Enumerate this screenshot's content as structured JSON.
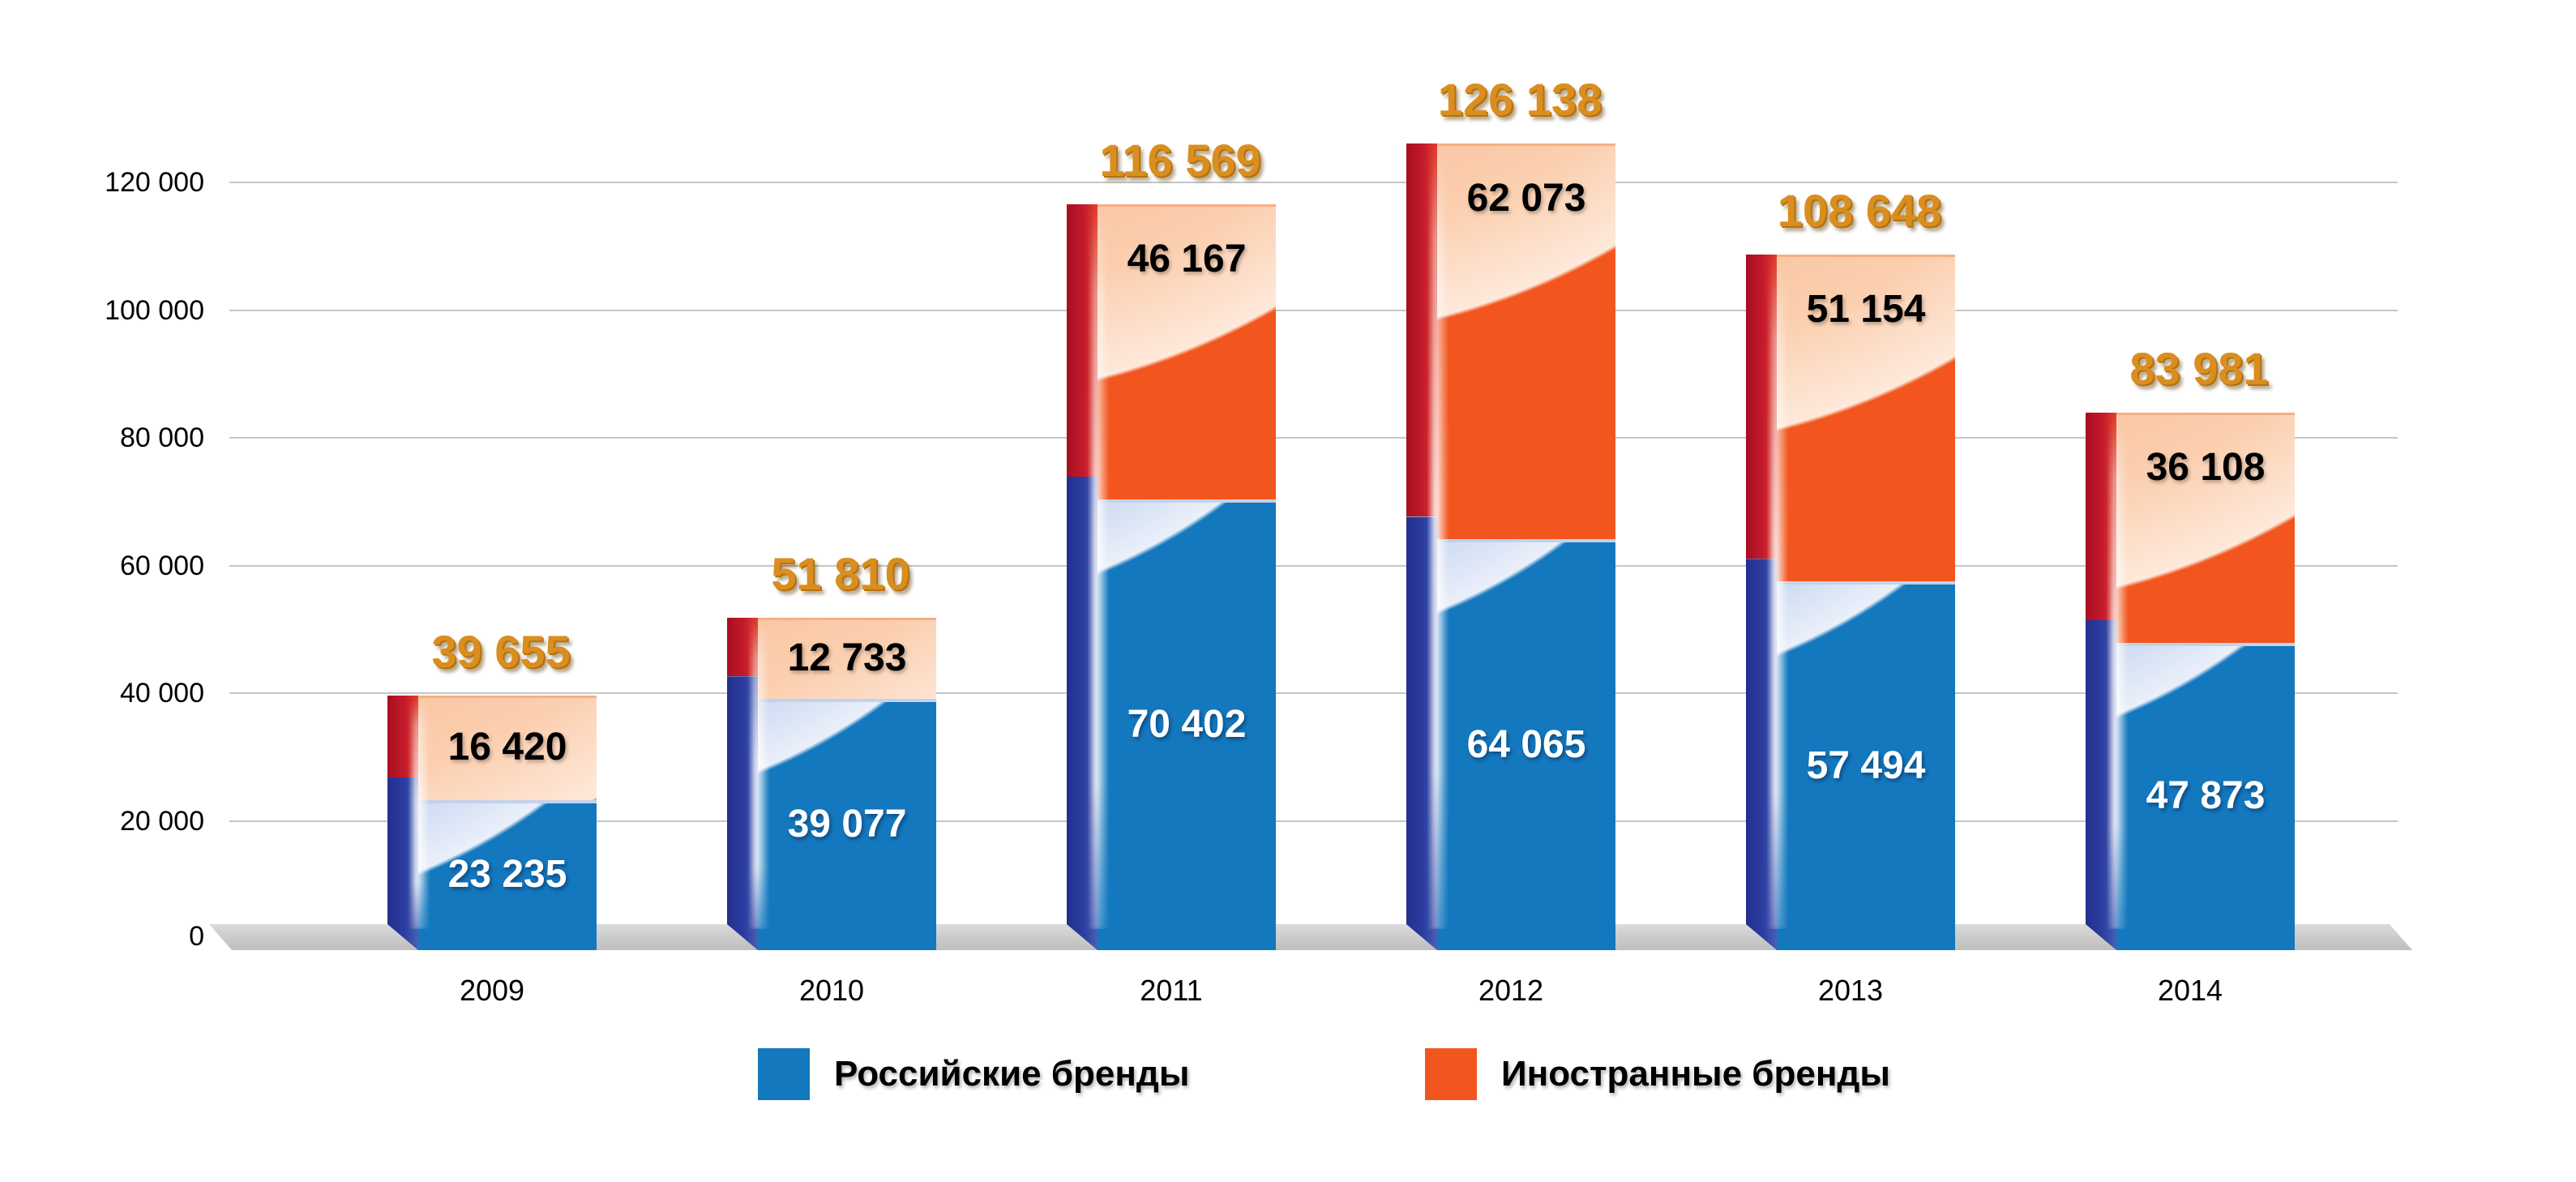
{
  "chart_data": {
    "type": "bar",
    "variant": "stacked-3d-column",
    "title": "",
    "categories": [
      "2009",
      "2010",
      "2011",
      "2012",
      "2013",
      "2014"
    ],
    "series": [
      {
        "name": "Российские бренды",
        "color": "#1478BE",
        "values": [
          23235,
          39077,
          70402,
          64065,
          57494,
          47873
        ]
      },
      {
        "name": "Иностранные бренды",
        "color": "#F2561E",
        "values": [
          16420,
          12733,
          46167,
          62073,
          51154,
          36108
        ]
      }
    ],
    "totals": [
      39655,
      51810,
      116569,
      126138,
      108648,
      83981
    ],
    "total_labels": [
      "39 655",
      "51 810",
      "116 569",
      "126 138",
      "108 648",
      "83 981"
    ],
    "value_labels": [
      [
        "23 235",
        "39 077",
        "70 402",
        "64 065",
        "57 494",
        "47 873"
      ],
      [
        "16 420",
        "12 733",
        "46 167",
        "62 073",
        "51 154",
        "36 108"
      ]
    ],
    "y_axis": {
      "min": 0,
      "max": 120000,
      "step": 20000,
      "tick_labels": [
        "0",
        "20 000",
        "40 000",
        "60 000",
        "80 000",
        "100 000",
        "120 000"
      ]
    },
    "grid": true,
    "legend_position": "bottom",
    "colors": {
      "total_label": "#D98E1F",
      "russian_side": "#26379B",
      "foreign_side": "#C01A2C",
      "gridline": "#C6C6C6",
      "floor": "#CCCCCC"
    }
  }
}
